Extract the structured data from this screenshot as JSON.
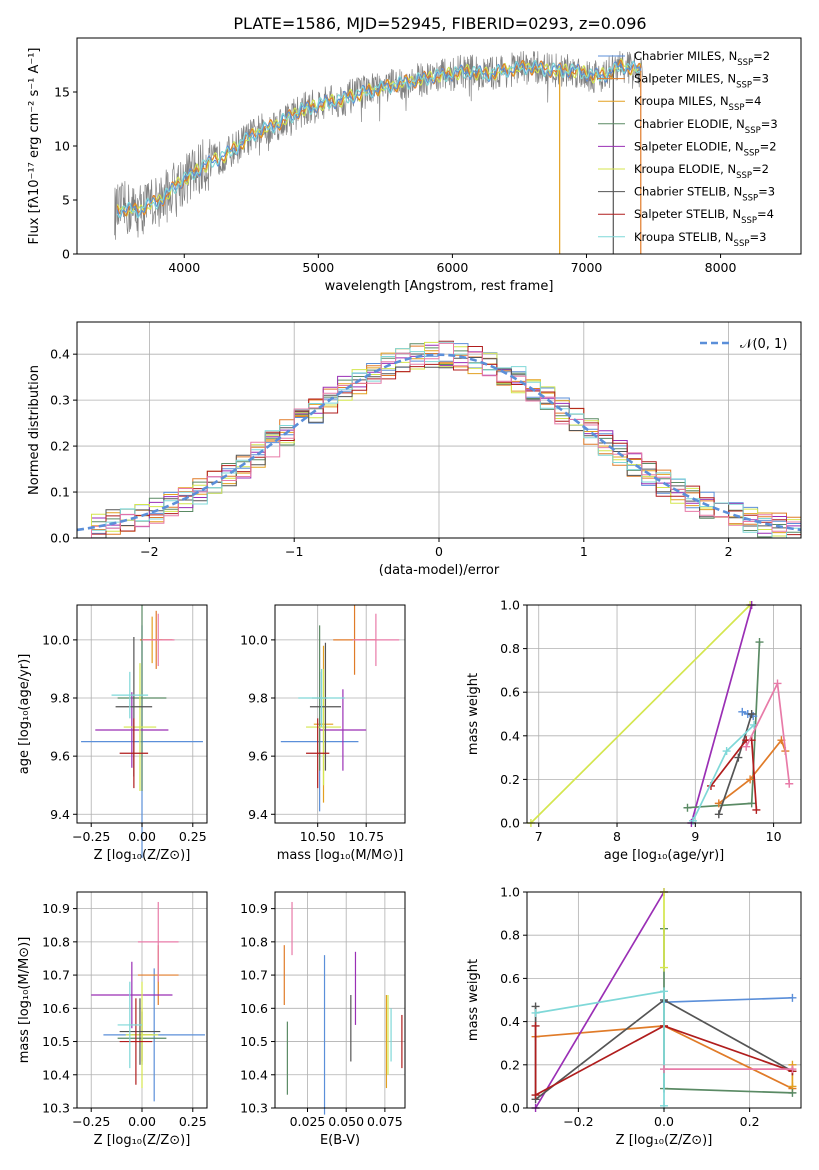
{
  "figure": {
    "title": "PLATE=1586, MJD=52945, FIBERID=0293, z=0.096"
  },
  "colors": {
    "ChabrierMILES": "#5b8fd9",
    "SalpeterMILES": "#e07b28",
    "KroupaMILES": "#e3a020",
    "ChabrierELODIE": "#5a8a64",
    "SalpeterELODIE": "#9a2fb5",
    "KroupaELODIE": "#d4e64e",
    "ChabrierSTELIB": "#555555",
    "SalpeterSTELIB": "#b01d1d",
    "KroupaSTELIB": "#7fd8d8",
    "Pink": "#e87ba8",
    "normal": "#5b8fd9"
  },
  "chart_data": [
    {
      "id": "spectrum",
      "type": "line",
      "title": "PLATE=1586, MJD=52945, FIBERID=0293, z=0.096",
      "xlabel": "wavelength [Angstrom, rest frame]",
      "ylabel": "Flux [fλ10⁻¹⁷ erg cm⁻² s⁻¹ A⁻¹]",
      "xlim": [
        3200,
        8600
      ],
      "ylim": [
        0,
        20
      ],
      "xticks": [
        4000,
        5000,
        6000,
        7000,
        8000
      ],
      "yticks": [
        0,
        5,
        10,
        15
      ],
      "legend_position": "top-right",
      "legend": [
        {
          "name": "Chabrier MILES, N",
          "sub": "SSP",
          "tail": "=2",
          "color": "ChabrierMILES"
        },
        {
          "name": "Salpeter MILES, N",
          "sub": "SSP",
          "tail": "=3",
          "color": "SalpeterMILES"
        },
        {
          "name": "Kroupa MILES, N",
          "sub": "SSP",
          "tail": "=4",
          "color": "KroupaMILES"
        },
        {
          "name": "Chabrier ELODIE, N",
          "sub": "SSP",
          "tail": "=3",
          "color": "ChabrierELODIE"
        },
        {
          "name": "Salpeter ELODIE, N",
          "sub": "SSP",
          "tail": "=2",
          "color": "SalpeterELODIE"
        },
        {
          "name": "Kroupa ELODIE, N",
          "sub": "SSP",
          "tail": "=2",
          "color": "KroupaELODIE"
        },
        {
          "name": "Chabrier STELIB, N",
          "sub": "SSP",
          "tail": "=3",
          "color": "ChabrierSTELIB"
        },
        {
          "name": "Salpeter STELIB, N",
          "sub": "SSP",
          "tail": "=4",
          "color": "SalpeterSTELIB"
        },
        {
          "name": "Kroupa STELIB, N",
          "sub": "SSP",
          "tail": "=3",
          "color": "KroupaSTELIB"
        }
      ],
      "continuum": [
        [
          3480,
          3.8
        ],
        [
          3550,
          4.2
        ],
        [
          3650,
          4.0
        ],
        [
          3750,
          4.6
        ],
        [
          3850,
          5.2
        ],
        [
          3950,
          6.5
        ],
        [
          4050,
          7.3
        ],
        [
          4150,
          8.2
        ],
        [
          4250,
          8.8
        ],
        [
          4350,
          9.5
        ],
        [
          4450,
          10.5
        ],
        [
          4550,
          11.3
        ],
        [
          4650,
          11.8
        ],
        [
          4750,
          12.4
        ],
        [
          4850,
          13.2
        ],
        [
          4950,
          13.6
        ],
        [
          5050,
          14.0
        ],
        [
          5150,
          14.2
        ],
        [
          5250,
          14.6
        ],
        [
          5350,
          15.0
        ],
        [
          5450,
          15.3
        ],
        [
          5550,
          15.6
        ],
        [
          5650,
          15.9
        ],
        [
          5750,
          16.1
        ],
        [
          5850,
          16.4
        ],
        [
          5950,
          16.6
        ],
        [
          6050,
          16.8
        ],
        [
          6150,
          16.9
        ],
        [
          6250,
          16.6
        ],
        [
          6350,
          16.9
        ],
        [
          6450,
          17.1
        ],
        [
          6550,
          17.3
        ],
        [
          6650,
          17.2
        ],
        [
          6750,
          17.0
        ],
        [
          6850,
          17.0
        ],
        [
          6950,
          16.9
        ],
        [
          7050,
          16.5
        ],
        [
          7150,
          16.6
        ],
        [
          7250,
          17.4
        ],
        [
          7350,
          17.2
        ],
        [
          7420,
          16.9
        ]
      ]
    },
    {
      "id": "residuals",
      "type": "histogram",
      "xlabel": "(data-model)/error",
      "ylabel": "Normed distribution",
      "xlim": [
        -2.5,
        2.5
      ],
      "ylim": [
        0,
        0.47
      ],
      "xticks": [
        -2,
        -1,
        0,
        1,
        2
      ],
      "yticks": [
        0.0,
        0.1,
        0.2,
        0.3,
        0.4
      ],
      "grid": true,
      "legend": [
        {
          "name": "𝒩(0, 1)",
          "color": "normal"
        }
      ],
      "bin_width": 0.1,
      "bin_start": -2.5
    },
    {
      "id": "age-vs-Z",
      "type": "errorbar",
      "xlabel": "Z [log₁₀(Z/Z⊙)]",
      "ylabel": "age  [log₁₀(age/yr)]",
      "xlim": [
        -0.32,
        0.32
      ],
      "ylim": [
        9.37,
        10.12
      ],
      "xticks": [
        -0.25,
        0.0,
        0.25
      ],
      "yticks": [
        9.4,
        9.6,
        9.8,
        10.0
      ],
      "grid": true,
      "points": [
        {
          "x": 0.0,
          "y": 9.65,
          "xerr": 0.3,
          "yerr": 0.4,
          "color": "ChabrierMILES"
        },
        {
          "x": 0.07,
          "y": 10.0,
          "xerr": 0.08,
          "yerr": 0.1,
          "color": "SalpeterMILES"
        },
        {
          "x": 0.05,
          "y": 10.0,
          "xerr": 0.05,
          "yerr": 0.08,
          "color": "KroupaMILES"
        },
        {
          "x": 0.0,
          "y": 9.8,
          "xerr": 0.12,
          "yerr": 0.32,
          "color": "ChabrierELODIE"
        },
        {
          "x": -0.05,
          "y": 9.69,
          "xerr": 0.18,
          "yerr": 0.13,
          "color": "SalpeterELODIE"
        },
        {
          "x": -0.01,
          "y": 9.7,
          "xerr": 0.08,
          "yerr": 0.22,
          "color": "KroupaELODIE"
        },
        {
          "x": -0.04,
          "y": 9.77,
          "xerr": 0.09,
          "yerr": 0.24,
          "color": "ChabrierSTELIB"
        },
        {
          "x": -0.04,
          "y": 9.61,
          "xerr": 0.07,
          "yerr": 0.12,
          "color": "SalpeterSTELIB"
        },
        {
          "x": -0.06,
          "y": 9.81,
          "xerr": 0.09,
          "yerr": 0.08,
          "color": "KroupaSTELIB"
        },
        {
          "x": 0.08,
          "y": 10.0,
          "xerr": 0.08,
          "yerr": 0.09,
          "color": "Pink"
        }
      ]
    },
    {
      "id": "age-vs-mass",
      "type": "errorbar",
      "xlabel": "mass [log₁₀(M/M⊙)]",
      "ylabel": "",
      "xlim": [
        10.28,
        10.95
      ],
      "ylim": [
        9.37,
        10.12
      ],
      "xticks": [
        10.5,
        10.75
      ],
      "yticks": [
        9.4,
        9.6,
        9.8,
        10.0
      ],
      "grid": true,
      "points": [
        {
          "x": 10.51,
          "y": 9.65,
          "xerr": 0.2,
          "yerr": 0.24,
          "color": "ChabrierMILES"
        },
        {
          "x": 10.69,
          "y": 10.0,
          "xerr": 0.11,
          "yerr": 0.12,
          "color": "SalpeterMILES"
        },
        {
          "x": 10.53,
          "y": 9.71,
          "xerr": 0.05,
          "yerr": 0.27,
          "color": "KroupaMILES"
        },
        {
          "x": 10.51,
          "y": 9.8,
          "xerr": 0.04,
          "yerr": 0.25,
          "color": "ChabrierELODIE"
        },
        {
          "x": 10.63,
          "y": 9.69,
          "xerr": 0.12,
          "yerr": 0.14,
          "color": "SalpeterELODIE"
        },
        {
          "x": 10.53,
          "y": 9.7,
          "xerr": 0.09,
          "yerr": 0.2,
          "color": "KroupaELODIE"
        },
        {
          "x": 10.54,
          "y": 9.77,
          "xerr": 0.08,
          "yerr": 0.22,
          "color": "ChabrierSTELIB"
        },
        {
          "x": 10.5,
          "y": 9.61,
          "xerr": 0.06,
          "yerr": 0.12,
          "color": "SalpeterSTELIB"
        },
        {
          "x": 10.52,
          "y": 9.8,
          "xerr": 0.12,
          "yerr": 0.1,
          "color": "KroupaSTELIB"
        },
        {
          "x": 10.8,
          "y": 10.0,
          "xerr": 0.12,
          "yerr": 0.09,
          "color": "Pink"
        }
      ]
    },
    {
      "id": "mass-weight-vs-age",
      "type": "line",
      "xlabel": "age  [log₁₀(age/yr)]",
      "ylabel": "mass weight",
      "xlim": [
        6.85,
        10.35
      ],
      "ylim": [
        0,
        1
      ],
      "xticks": [
        7,
        8,
        9,
        10
      ],
      "yticks": [
        0.0,
        0.2,
        0.4,
        0.6,
        0.8,
        1.0
      ],
      "grid": true,
      "series": [
        {
          "color": "KroupaELODIE",
          "x": [
            6.9,
            9.7
          ],
          "y": [
            0.0,
            1.0
          ]
        },
        {
          "color": "SalpeterELODIE",
          "x": [
            8.95,
            9.72
          ],
          "y": [
            0.0,
            1.0
          ]
        },
        {
          "color": "ChabrierELODIE",
          "x": [
            8.9,
            9.72,
            9.82
          ],
          "y": [
            0.07,
            0.09,
            0.83
          ]
        },
        {
          "color": "ChabrierMILES",
          "x": [
            9.6,
            9.67,
            9.74
          ],
          "y": [
            0.51,
            0.5,
            0.49
          ]
        },
        {
          "color": "SalpeterMILES",
          "x": [
            9.3,
            9.7,
            10.1,
            10.15
          ],
          "y": [
            0.09,
            0.2,
            0.38,
            0.33
          ]
        },
        {
          "color": "ChabrierSTELIB",
          "x": [
            9.3,
            9.55,
            9.72
          ],
          "y": [
            0.04,
            0.3,
            0.5
          ]
        },
        {
          "color": "SalpeterSTELIB",
          "x": [
            9.2,
            9.65,
            9.72,
            9.78
          ],
          "y": [
            0.17,
            0.38,
            0.38,
            0.06
          ]
        },
        {
          "color": "KroupaSTELIB",
          "x": [
            8.97,
            9.4,
            9.75
          ],
          "y": [
            0.01,
            0.33,
            0.45
          ]
        },
        {
          "color": "Pink",
          "x": [
            9.65,
            10.05,
            10.2
          ],
          "y": [
            0.35,
            0.64,
            0.18
          ]
        }
      ]
    },
    {
      "id": "mass-vs-Z",
      "type": "errorbar",
      "xlabel": "Z [log₁₀(Z/Z⊙)]",
      "ylabel": "mass [log₁₀(M/M⊙)]",
      "xlim": [
        -0.32,
        0.32
      ],
      "ylim": [
        10.3,
        10.95
      ],
      "xticks": [
        -0.25,
        0.0,
        0.25
      ],
      "yticks": [
        10.3,
        10.4,
        10.5,
        10.6,
        10.7,
        10.8,
        10.9
      ],
      "grid": true,
      "points": [
        {
          "x": 0.06,
          "y": 10.52,
          "xerr": 0.25,
          "yerr": 0.2,
          "color": "ChabrierMILES"
        },
        {
          "x": 0.08,
          "y": 10.7,
          "xerr": 0.1,
          "yerr": 0.09,
          "color": "SalpeterMILES"
        },
        {
          "x": 0.0,
          "y": 10.52,
          "xerr": 0.05,
          "yerr": 0.08,
          "color": "KroupaMILES"
        },
        {
          "x": 0.0,
          "y": 10.51,
          "xerr": 0.12,
          "yerr": 0.08,
          "color": "ChabrierELODIE"
        },
        {
          "x": -0.05,
          "y": 10.64,
          "xerr": 0.2,
          "yerr": 0.1,
          "color": "SalpeterELODIE"
        },
        {
          "x": 0.0,
          "y": 10.52,
          "xerr": 0.08,
          "yerr": 0.16,
          "color": "KroupaELODIE"
        },
        {
          "x": -0.01,
          "y": 10.53,
          "xerr": 0.1,
          "yerr": 0.1,
          "color": "ChabrierSTELIB"
        },
        {
          "x": -0.03,
          "y": 10.5,
          "xerr": 0.08,
          "yerr": 0.13,
          "color": "SalpeterSTELIB"
        },
        {
          "x": -0.06,
          "y": 10.55,
          "xerr": 0.06,
          "yerr": 0.13,
          "color": "KroupaSTELIB"
        },
        {
          "x": 0.08,
          "y": 10.8,
          "xerr": 0.1,
          "yerr": 0.12,
          "color": "Pink"
        }
      ]
    },
    {
      "id": "mass-vs-EBV",
      "type": "errorbar",
      "xlabel": "E(B-V)",
      "ylabel": "",
      "xlim": [
        0.004,
        0.088
      ],
      "ylim": [
        10.3,
        10.95
      ],
      "xticks": [
        0.025,
        0.05,
        0.075
      ],
      "xtick_labels": [
        "0.025",
        "0.050",
        "0.075"
      ],
      "yticks": [
        10.3,
        10.4,
        10.5,
        10.6,
        10.7,
        10.8,
        10.9
      ],
      "grid": true,
      "points": [
        {
          "x": 0.036,
          "y": 10.52,
          "yerr": 0.24,
          "color": "ChabrierMILES"
        },
        {
          "x": 0.01,
          "y": 10.7,
          "yerr": 0.09,
          "color": "SalpeterMILES"
        },
        {
          "x": 0.076,
          "y": 10.5,
          "yerr": 0.14,
          "color": "KroupaMILES"
        },
        {
          "x": 0.012,
          "y": 10.45,
          "yerr": 0.11,
          "color": "ChabrierELODIE"
        },
        {
          "x": 0.056,
          "y": 10.66,
          "yerr": 0.11,
          "color": "SalpeterELODIE"
        },
        {
          "x": 0.077,
          "y": 10.52,
          "yerr": 0.12,
          "color": "KroupaELODIE"
        },
        {
          "x": 0.053,
          "y": 10.54,
          "yerr": 0.1,
          "color": "ChabrierSTELIB"
        },
        {
          "x": 0.086,
          "y": 10.5,
          "yerr": 0.08,
          "color": "SalpeterSTELIB"
        },
        {
          "x": 0.079,
          "y": 10.52,
          "yerr": 0.08,
          "color": "KroupaSTELIB"
        },
        {
          "x": 0.015,
          "y": 10.84,
          "yerr": 0.08,
          "color": "Pink"
        }
      ]
    },
    {
      "id": "mass-weight-vs-Z",
      "type": "line",
      "xlabel": "Z [log₁₀(Z/Z⊙)]",
      "ylabel": "mass weight",
      "xlim": [
        -0.32,
        0.32
      ],
      "ylim": [
        0,
        1
      ],
      "xticks": [
        -0.2,
        0.0,
        0.2
      ],
      "yticks": [
        0.0,
        0.2,
        0.4,
        0.6,
        0.8,
        1.0
      ],
      "grid": true,
      "series": [
        {
          "color": "ChabrierMILES",
          "x": [
            0.0,
            0.3
          ],
          "y": [
            0.49,
            0.51
          ]
        },
        {
          "color": "SalpeterMILES",
          "x": [
            -0.3,
            0.0,
            0.3
          ],
          "y": [
            0.33,
            0.38,
            0.09
          ]
        },
        {
          "color": "KroupaMILES",
          "x": [
            0.3,
            0.3
          ],
          "y": [
            0.2,
            0.1
          ]
        },
        {
          "color": "ChabrierELODIE",
          "x": [
            0.0,
            0.0,
            0.3
          ],
          "y": [
            0.83,
            0.09,
            0.07
          ]
        },
        {
          "color": "SalpeterELODIE",
          "x": [
            -0.3,
            0.0
          ],
          "y": [
            0.0,
            1.0
          ]
        },
        {
          "color": "KroupaELODIE",
          "x": [
            0.0,
            0.0
          ],
          "y": [
            1.0,
            0.65
          ]
        },
        {
          "color": "ChabrierSTELIB",
          "x": [
            -0.3,
            -0.3,
            0.0,
            0.3
          ],
          "y": [
            0.47,
            0.04,
            0.5,
            0.17
          ]
        },
        {
          "color": "SalpeterSTELIB",
          "x": [
            -0.3,
            -0.3,
            0.0,
            0.3
          ],
          "y": [
            0.38,
            0.06,
            0.38,
            0.17
          ]
        },
        {
          "color": "KroupaSTELIB",
          "x": [
            -0.3,
            0.0,
            0.0
          ],
          "y": [
            0.44,
            0.54,
            0.01
          ]
        },
        {
          "color": "Pink",
          "x": [
            0.0,
            0.3
          ],
          "y": [
            0.18,
            0.18
          ]
        }
      ]
    }
  ]
}
